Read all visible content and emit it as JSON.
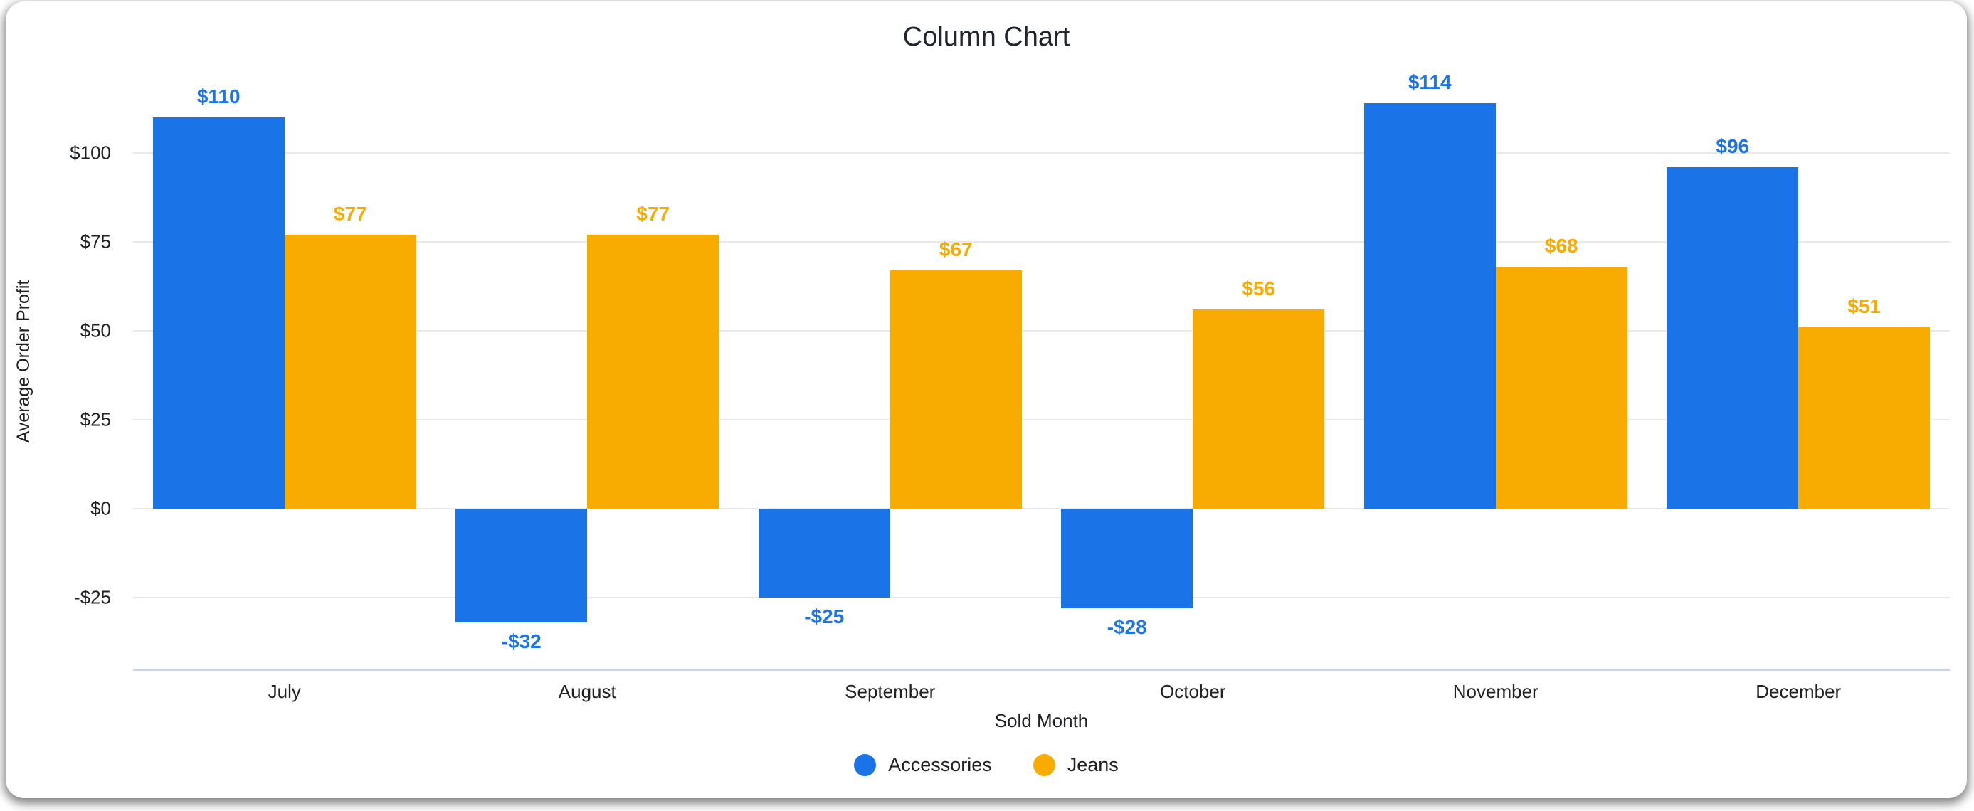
{
  "chart_data": {
    "type": "bar",
    "title": "Column Chart",
    "xlabel": "Sold Month",
    "ylabel": "Average Order Profit",
    "categories": [
      "July",
      "August",
      "September",
      "October",
      "November",
      "December"
    ],
    "series": [
      {
        "name": "Accessories",
        "color": "#1b73e8",
        "values": [
          110,
          -32,
          -25,
          -28,
          114,
          96
        ],
        "value_labels": [
          "$110",
          "-$32",
          "-$25",
          "-$28",
          "$114",
          "$96"
        ]
      },
      {
        "name": "Jeans",
        "color": "#f8ab00",
        "values": [
          77,
          77,
          67,
          56,
          68,
          51
        ],
        "value_labels": [
          "$77",
          "$77",
          "$67",
          "$56",
          "$68",
          "$51"
        ]
      }
    ],
    "y_ticks": [
      {
        "value": 100,
        "label": "$100"
      },
      {
        "value": 75,
        "label": "$75"
      },
      {
        "value": 50,
        "label": "$50"
      },
      {
        "value": 25,
        "label": "$25"
      },
      {
        "value": 0,
        "label": "$0"
      },
      {
        "value": -25,
        "label": "-$25"
      }
    ],
    "ylim": [
      -45,
      125
    ],
    "grid": true,
    "legend_position": "bottom",
    "colors": {
      "gridline": "#e9e9eb",
      "axis_line": "#ccd4e5",
      "text": "#202124"
    }
  }
}
